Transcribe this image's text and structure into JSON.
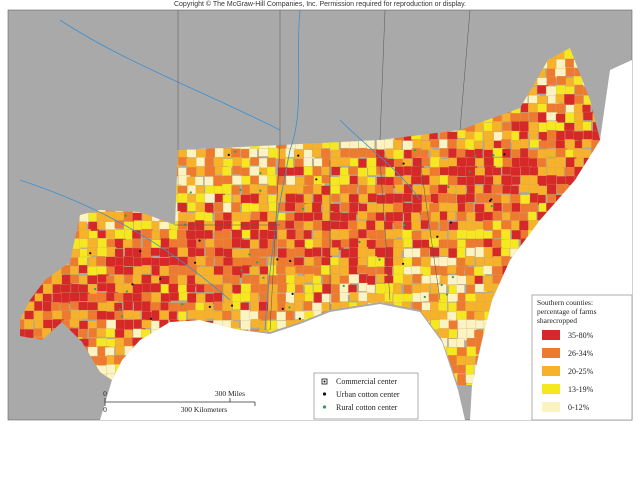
{
  "header": {
    "copyright": "Copyright © The McGraw-Hill Companies, Inc. Permission required for reproduction or display."
  },
  "scale_bar": {
    "miles_start": "0",
    "miles_end": "300 Miles",
    "km_start": "0",
    "km_end": "300 Kilometers"
  },
  "symbol_legend": [
    "Commercial center",
    "Urban cotton center",
    "Rural cotton center"
  ],
  "legend": {
    "title": [
      "Southern counties:",
      "percentage of farms",
      "sharecropped"
    ],
    "items": [
      {
        "label": "35-80%",
        "color": "#d62828"
      },
      {
        "label": "26-34%",
        "color": "#ee7a30"
      },
      {
        "label": "20-25%",
        "color": "#f6b22a"
      },
      {
        "label": "13-19%",
        "color": "#f6e820"
      },
      {
        "label": "0-12%",
        "color": "#fbf3c2"
      }
    ]
  }
}
